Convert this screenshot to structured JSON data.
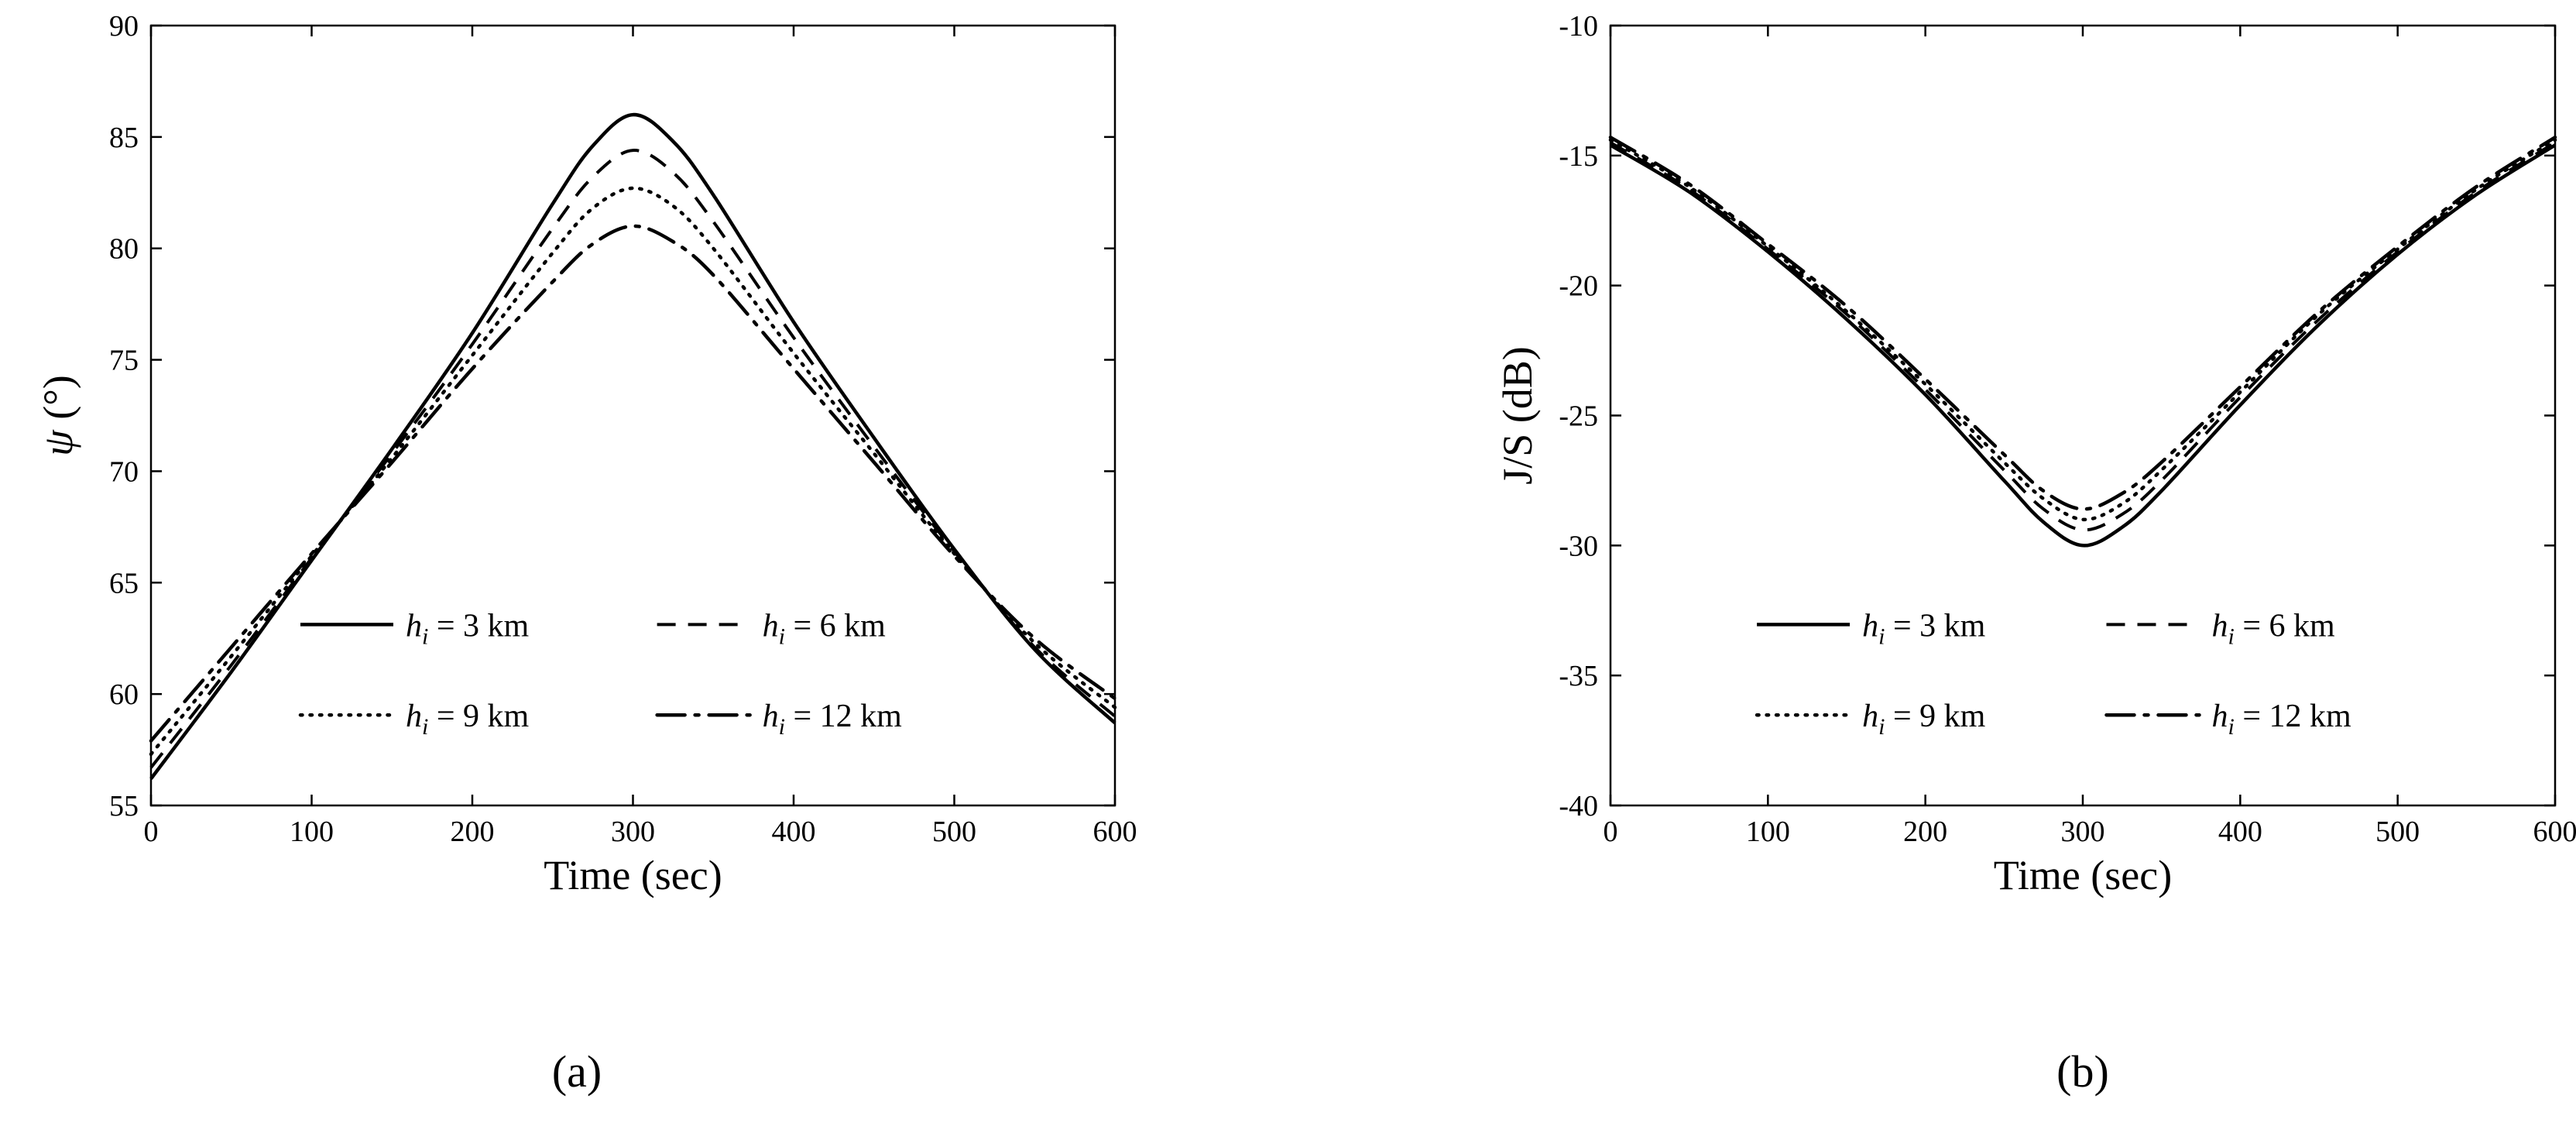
{
  "page": {
    "background": "#ffffff",
    "line_color": "#000000"
  },
  "chart_data": [
    {
      "id": "a",
      "type": "line",
      "caption": "(a)",
      "xlabel": "Time (sec)",
      "ylabel_parts": [
        {
          "text": "ψ",
          "italic": true
        },
        {
          "text": " (°)",
          "italic": false
        }
      ],
      "xlim": [
        0,
        600
      ],
      "ylim": [
        55,
        90
      ],
      "xticks": [
        0,
        100,
        200,
        300,
        400,
        500,
        600
      ],
      "yticks": [
        55,
        60,
        65,
        70,
        75,
        80,
        85,
        90
      ],
      "grid": false,
      "legend_position": "lower-center",
      "legend_columns": 2,
      "x": [
        0,
        50,
        100,
        150,
        200,
        250,
        275,
        300,
        325,
        350,
        400,
        450,
        500,
        550,
        600
      ],
      "series": [
        {
          "name": "h_i = 3 km",
          "label": {
            "base": "h",
            "sub": "i",
            "rest": " = 3 km"
          },
          "style": "solid",
          "color": "#000000",
          "values": [
            56.2,
            61.0,
            66.0,
            71.0,
            76.2,
            82.0,
            84.6,
            86.0,
            84.8,
            82.4,
            76.7,
            71.5,
            66.5,
            62.0,
            58.7
          ]
        },
        {
          "name": "h_i = 6 km",
          "label": {
            "base": "h",
            "sub": "i",
            "rest": " = 6 km"
          },
          "style": "dashed",
          "color": "#000000",
          "values": [
            56.7,
            61.3,
            66.1,
            70.8,
            75.7,
            80.9,
            83.2,
            84.4,
            83.4,
            81.2,
            76.0,
            71.1,
            66.4,
            62.1,
            59.0
          ]
        },
        {
          "name": "h_i = 9 km",
          "label": {
            "base": "h",
            "sub": "i",
            "rest": " = 9 km"
          },
          "style": "dotted",
          "color": "#000000",
          "values": [
            57.3,
            61.7,
            66.2,
            70.6,
            75.2,
            79.8,
            81.8,
            82.7,
            81.9,
            80.0,
            75.3,
            70.8,
            66.3,
            62.3,
            59.4
          ]
        },
        {
          "name": "h_i = 12 km",
          "label": {
            "base": "h",
            "sub": "i",
            "rest": " = 12 km"
          },
          "style": "dashdot",
          "color": "#000000",
          "values": [
            57.9,
            62.1,
            66.3,
            70.4,
            74.6,
            78.5,
            80.2,
            81.0,
            80.3,
            78.8,
            74.6,
            70.4,
            66.2,
            62.5,
            59.8
          ]
        }
      ]
    },
    {
      "id": "b",
      "type": "line",
      "caption": "(b)",
      "xlabel": "Time (sec)",
      "ylabel_parts": [
        {
          "text": "J/S (dB)",
          "italic": false
        }
      ],
      "xlim": [
        0,
        600
      ],
      "ylim": [
        -40,
        -10
      ],
      "xticks": [
        0,
        100,
        200,
        300,
        400,
        500,
        600
      ],
      "yticks": [
        -40,
        -35,
        -30,
        -25,
        -20,
        -15,
        -10
      ],
      "grid": false,
      "legend_position": "lower-center",
      "legend_columns": 2,
      "x": [
        0,
        50,
        100,
        150,
        200,
        250,
        275,
        300,
        325,
        350,
        400,
        450,
        500,
        550,
        600
      ],
      "series": [
        {
          "name": "h_i = 3 km",
          "label": {
            "base": "h",
            "sub": "i",
            "rest": " = 3 km"
          },
          "style": "solid",
          "color": "#000000",
          "values": [
            -14.6,
            -16.4,
            -18.7,
            -21.3,
            -24.2,
            -27.5,
            -29.1,
            -30.0,
            -29.3,
            -27.9,
            -24.6,
            -21.5,
            -18.8,
            -16.5,
            -14.6
          ]
        },
        {
          "name": "h_i = 6 km",
          "label": {
            "base": "h",
            "sub": "i",
            "rest": " = 6 km"
          },
          "style": "dashed",
          "color": "#000000",
          "values": [
            -14.5,
            -16.3,
            -18.6,
            -21.1,
            -24.0,
            -27.1,
            -28.6,
            -29.4,
            -28.8,
            -27.5,
            -24.3,
            -21.3,
            -18.7,
            -16.4,
            -14.5
          ]
        },
        {
          "name": "h_i = 9 km",
          "label": {
            "base": "h",
            "sub": "i",
            "rest": " = 9 km"
          },
          "style": "dotted",
          "color": "#000000",
          "values": [
            -14.4,
            -16.2,
            -18.5,
            -21.0,
            -23.8,
            -26.8,
            -28.2,
            -29.0,
            -28.4,
            -27.1,
            -24.1,
            -21.1,
            -18.6,
            -16.3,
            -14.4
          ]
        },
        {
          "name": "h_i = 12 km",
          "label": {
            "base": "h",
            "sub": "i",
            "rest": " = 12 km"
          },
          "style": "dashdot",
          "color": "#000000",
          "values": [
            -14.3,
            -16.1,
            -18.4,
            -20.8,
            -23.6,
            -26.5,
            -27.9,
            -28.6,
            -28.0,
            -26.8,
            -23.9,
            -21.0,
            -18.5,
            -16.2,
            -14.3
          ]
        }
      ]
    }
  ]
}
